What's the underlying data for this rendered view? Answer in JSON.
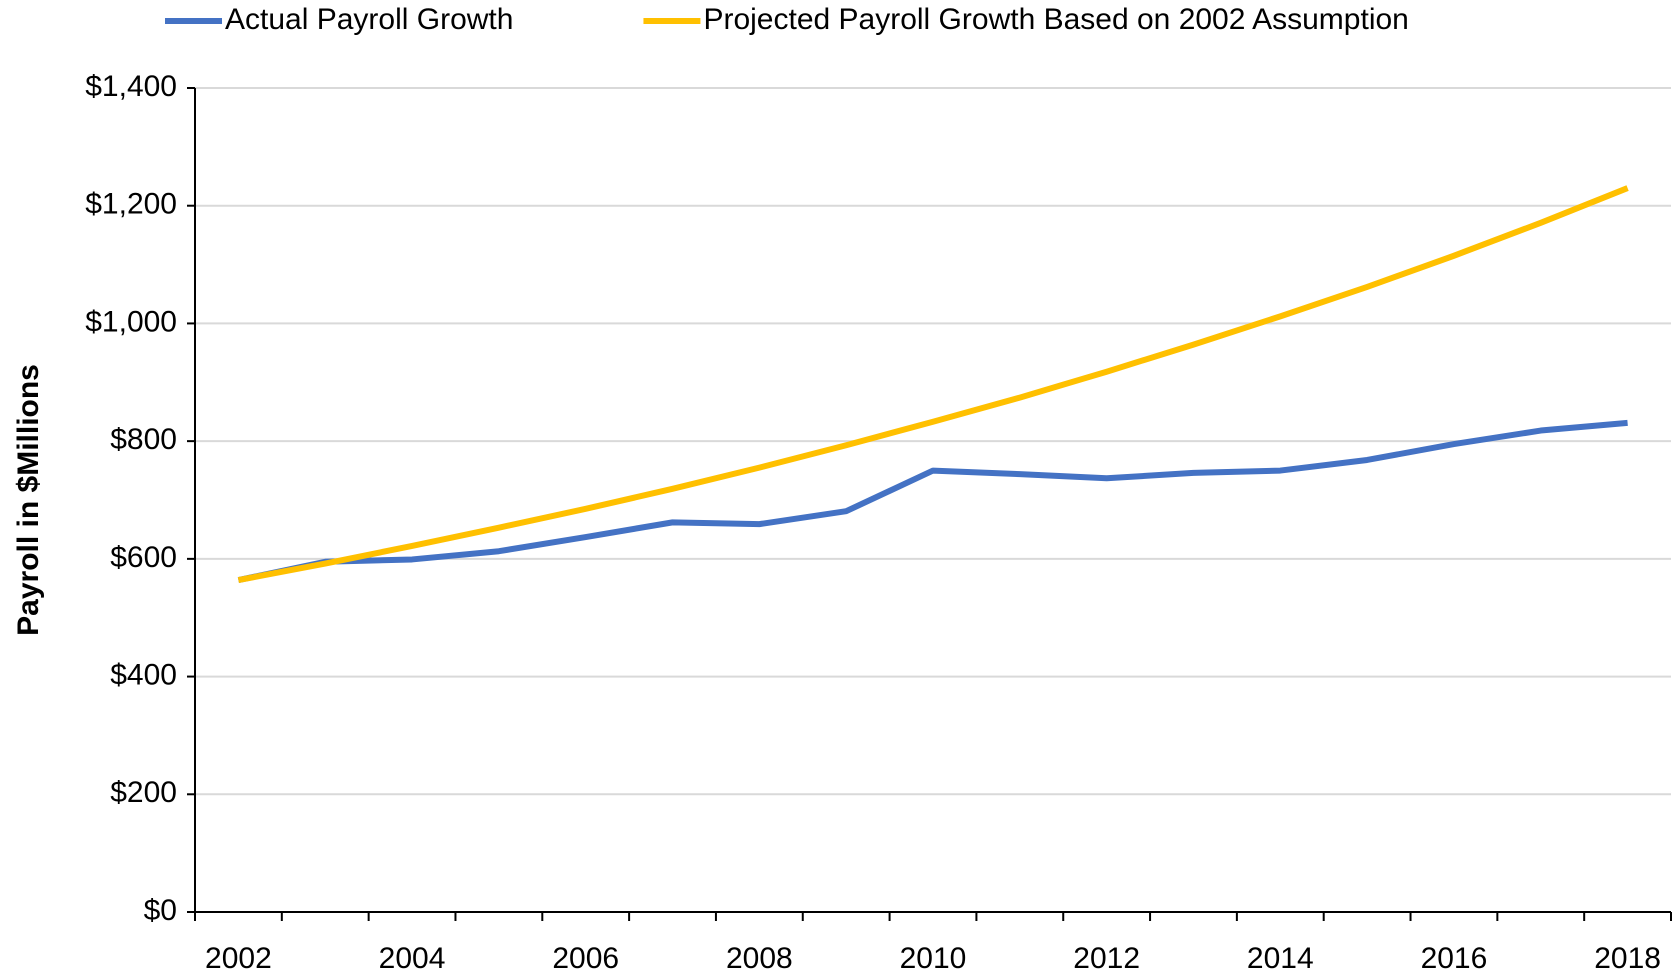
{
  "chart_data": {
    "type": "line",
    "y_label": "Payroll in $Millions",
    "categories": [
      "2002",
      null,
      "2004",
      null,
      "2006",
      null,
      "2008",
      null,
      "2010",
      null,
      "2012",
      null,
      "2014",
      null,
      "2016",
      null,
      "2018"
    ],
    "series": [
      {
        "name": "Actual Payroll Growth",
        "color": "#4472c4",
        "values": [
          564,
          595,
          599,
          613,
          637,
          662,
          659,
          681,
          750,
          744,
          737,
          746,
          750,
          768,
          795,
          818,
          831
        ]
      },
      {
        "name": "Projected Payroll Growth Based on 2002 Assumption",
        "color": "#ffc000",
        "values": [
          564,
          592,
          622,
          653,
          685,
          719,
          755,
          793,
          833,
          874,
          918,
          964,
          1012,
          1062,
          1115,
          1171,
          1230
        ]
      }
    ],
    "ylim": [
      0,
      1400
    ],
    "yticks": [
      {
        "value": 0,
        "label": "$0"
      },
      {
        "value": 200,
        "label": "$200"
      },
      {
        "value": 400,
        "label": "$400"
      },
      {
        "value": 600,
        "label": "$600"
      },
      {
        "value": 800,
        "label": "$800"
      },
      {
        "value": 1000,
        "label": "$1,000"
      },
      {
        "value": 1200,
        "label": "$1,200"
      },
      {
        "value": 1400,
        "label": "$1,400"
      }
    ],
    "grid": true,
    "legend": "top"
  }
}
